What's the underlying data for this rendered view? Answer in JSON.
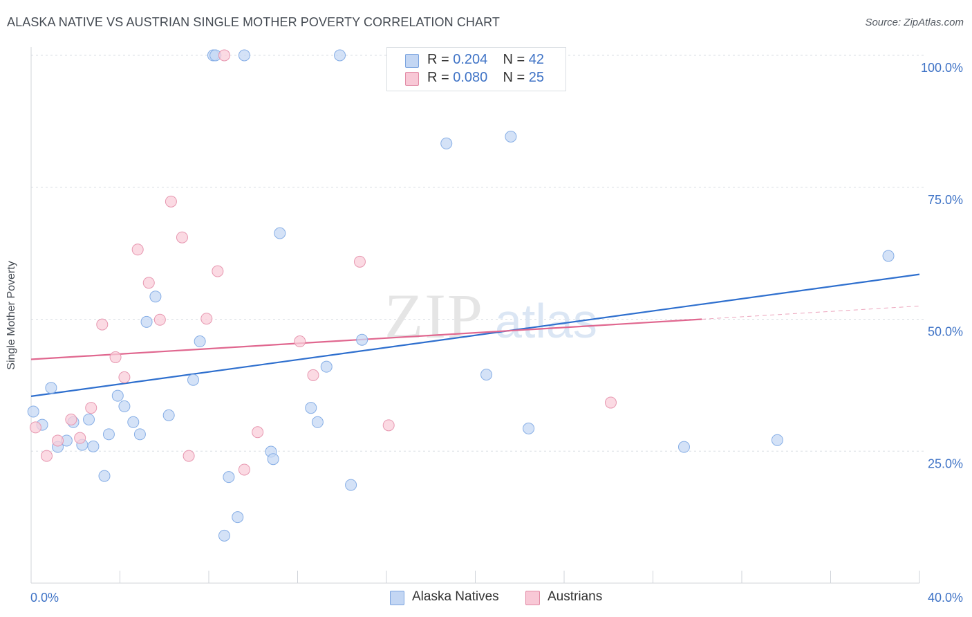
{
  "title": "ALASKA NATIVE VS AUSTRIAN SINGLE MOTHER POVERTY CORRELATION CHART",
  "source": "Source: ZipAtlas.com",
  "watermark": {
    "zip": "ZIP",
    "atlas": "atlas"
  },
  "legend": {
    "series": [
      {
        "name": "Alaska Natives",
        "r_label": "R =",
        "r_value": "0.204",
        "n_label": "N =",
        "n_value": "42",
        "fill": "#c3d6f3",
        "stroke": "#7aa3df"
      },
      {
        "name": "Austrians",
        "r_label": "R =",
        "r_value": "0.080",
        "n_label": "N =",
        "n_value": "25",
        "fill": "#f8c8d6",
        "stroke": "#e28aa5"
      }
    ]
  },
  "colors": {
    "blue_point_fill": "#c5d8f4",
    "blue_point_stroke": "#86aee6",
    "blue_line": "#2e6fce",
    "pink_point_fill": "#f9cdd9",
    "pink_point_stroke": "#e797b0",
    "pink_line": "#e0678f",
    "tick_label": "#3f73c6",
    "grid": "#d8dde3"
  },
  "chart_data": {
    "type": "scatter",
    "title": "ALASKA NATIVE VS AUSTRIAN SINGLE MOTHER POVERTY CORRELATION CHART",
    "xlabel": "",
    "ylabel": "Single Mother Poverty",
    "xlim": [
      0,
      40
    ],
    "ylim": [
      0,
      100
    ],
    "x_tick_labels": [
      {
        "value": 0,
        "label": "0.0%"
      },
      {
        "value": 40,
        "label": "40.0%"
      }
    ],
    "y_tick_labels": [
      {
        "value": 25,
        "label": "25.0%"
      },
      {
        "value": 50,
        "label": "50.0%"
      },
      {
        "value": 75,
        "label": "75.0%"
      },
      {
        "value": 100,
        "label": "100.0%"
      }
    ],
    "grid": true,
    "legend_position": "top-center",
    "series": [
      {
        "name": "Alaska Natives",
        "color": "#86aee6",
        "points": [
          [
            0.1,
            32.5
          ],
          [
            0.5,
            30
          ],
          [
            0.9,
            37
          ],
          [
            1.2,
            25.8
          ],
          [
            1.6,
            27
          ],
          [
            1.9,
            30.5
          ],
          [
            2.3,
            26.2
          ],
          [
            2.6,
            31
          ],
          [
            2.8,
            25.9
          ],
          [
            3.3,
            20.3
          ],
          [
            3.5,
            28.2
          ],
          [
            3.9,
            35.5
          ],
          [
            4.2,
            33.5
          ],
          [
            4.6,
            30.5
          ],
          [
            4.9,
            28.2
          ],
          [
            5.2,
            49.5
          ],
          [
            5.6,
            54.3
          ],
          [
            6.2,
            31.8
          ],
          [
            7.3,
            38.5
          ],
          [
            7.6,
            45.8
          ],
          [
            8.2,
            100
          ],
          [
            8.3,
            100
          ],
          [
            8.7,
            9
          ],
          [
            8.9,
            20.1
          ],
          [
            9.3,
            12.5
          ],
          [
            9.6,
            100
          ],
          [
            10.8,
            24.9
          ],
          [
            10.9,
            23.5
          ],
          [
            11.2,
            66.3
          ],
          [
            12.6,
            33.2
          ],
          [
            12.9,
            30.5
          ],
          [
            13.3,
            41
          ],
          [
            13.9,
            100
          ],
          [
            14.4,
            18.6
          ],
          [
            14.9,
            46.1
          ],
          [
            18.7,
            83.3
          ],
          [
            20.5,
            39.5
          ],
          [
            21.6,
            84.6
          ],
          [
            22.4,
            29.3
          ],
          [
            29.4,
            25.8
          ],
          [
            33.6,
            27.1
          ],
          [
            38.6,
            62
          ]
        ],
        "trend": [
          [
            0,
            35.4
          ],
          [
            40,
            58.5
          ]
        ]
      },
      {
        "name": "Austrians",
        "color": "#e797b0",
        "points": [
          [
            0.2,
            29.5
          ],
          [
            0.7,
            24.1
          ],
          [
            1.2,
            27
          ],
          [
            1.8,
            31
          ],
          [
            2.2,
            27.5
          ],
          [
            2.7,
            33.2
          ],
          [
            3.2,
            49
          ],
          [
            3.8,
            42.8
          ],
          [
            4.2,
            39
          ],
          [
            4.8,
            63.2
          ],
          [
            5.3,
            56.9
          ],
          [
            5.8,
            49.9
          ],
          [
            6.3,
            72.3
          ],
          [
            6.8,
            65.5
          ],
          [
            7.1,
            24.1
          ],
          [
            7.9,
            50.1
          ],
          [
            8.4,
            59.1
          ],
          [
            8.7,
            100
          ],
          [
            9.6,
            21.5
          ],
          [
            10.2,
            28.6
          ],
          [
            12.1,
            45.8
          ],
          [
            12.7,
            39.4
          ],
          [
            14.8,
            60.9
          ],
          [
            16.1,
            29.9
          ],
          [
            26.1,
            34.2
          ]
        ],
        "trend": [
          [
            0,
            42.4
          ],
          [
            30.2,
            50
          ]
        ],
        "trend_dashed_extension": [
          [
            30.2,
            50
          ],
          [
            40,
            52.5
          ]
        ]
      }
    ]
  }
}
